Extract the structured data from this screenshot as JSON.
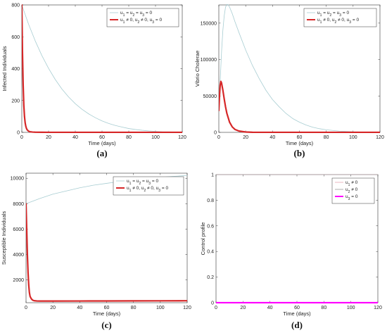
{
  "colors": {
    "no_control": "#a8cdd2",
    "with_control": "#d62728",
    "control_u1": "#e6a5b0",
    "control_u2": "#9a9a9a",
    "control_u3": "#ff00ff"
  },
  "chart_data": [
    {
      "id": "a",
      "panel_label": "(a)",
      "type": "line",
      "xlabel": "Time (days)",
      "ylabel": "Infected Individuals",
      "xlim": [
        0,
        120
      ],
      "ylim": [
        0,
        800
      ],
      "xticks": [
        "0",
        "20",
        "40",
        "60",
        "80",
        "100",
        "120"
      ],
      "yticks": [
        "0",
        "200",
        "400",
        "600",
        "800"
      ],
      "xtick_values": [
        0,
        20,
        40,
        60,
        80,
        100,
        120
      ],
      "ytick_values": [
        0,
        200,
        400,
        600,
        800
      ],
      "legend_position": "top-right",
      "series": [
        {
          "name": "u1 = u2 = u3 = 0",
          "color_key": "no_control",
          "stroke": "thin",
          "x": [
            0,
            5,
            10,
            15,
            20,
            25,
            30,
            35,
            40,
            45,
            50,
            55,
            60,
            65,
            70,
            75,
            80,
            85,
            90,
            95,
            100,
            105,
            110,
            115,
            120
          ],
          "y": [
            800,
            680,
            575,
            482,
            402,
            332,
            272,
            222,
            180,
            145,
            116,
            92,
            72,
            56,
            43,
            33,
            24,
            18,
            13,
            9,
            6,
            4,
            3,
            2,
            1
          ]
        },
        {
          "name": "u1 ≠ 0, u2 ≠ 0, u3 = 0",
          "color_key": "with_control",
          "stroke": "thick",
          "x": [
            0,
            0.5,
            1,
            1.5,
            2,
            2.5,
            3,
            3.5,
            4,
            5,
            6,
            8,
            10,
            15,
            20,
            40,
            60,
            80,
            100,
            120
          ],
          "y": [
            800,
            500,
            300,
            170,
            100,
            60,
            38,
            24,
            16,
            8,
            4,
            2,
            1,
            0.5,
            0,
            0,
            0,
            0,
            0,
            0
          ]
        }
      ]
    },
    {
      "id": "b",
      "panel_label": "(b)",
      "type": "line",
      "xlabel": "Time (days)",
      "ylabel": "Vibrio Cholerae",
      "xlim": [
        0,
        120
      ],
      "ylim": [
        0,
        175000
      ],
      "xticks": [
        "0",
        "20",
        "40",
        "60",
        "80",
        "100",
        "120"
      ],
      "yticks": [
        "0",
        "50000",
        "100000",
        "150000"
      ],
      "xtick_values": [
        0,
        20,
        40,
        60,
        80,
        100,
        120
      ],
      "ytick_values": [
        0,
        50000,
        100000,
        150000
      ],
      "legend_position": "top-right",
      "series": [
        {
          "name": "u1 = u2 = u3 = 0",
          "color_key": "no_control",
          "stroke": "thin",
          "x": [
            0,
            1,
            2,
            3,
            4,
            5,
            6,
            7,
            8,
            10,
            12,
            15,
            20,
            25,
            30,
            35,
            40,
            45,
            50,
            55,
            60,
            65,
            70,
            75,
            80,
            90,
            100,
            110,
            120
          ],
          "y": [
            30000,
            70000,
            110000,
            140000,
            160000,
            172000,
            176000,
            175000,
            172000,
            163000,
            152000,
            137000,
            113000,
            92000,
            74000,
            58000,
            45000,
            35000,
            26000,
            19000,
            14000,
            10000,
            7000,
            5000,
            3500,
            1700,
            800,
            400,
            200
          ]
        },
        {
          "name": "u1 ≠ 0, u2 ≠ 0, u3 = 0",
          "color_key": "with_control",
          "stroke": "thick",
          "x": [
            0,
            0.5,
            1,
            1.5,
            2,
            3,
            4,
            5,
            6,
            8,
            10,
            12,
            15,
            20,
            25,
            30,
            40,
            60,
            80,
            100,
            120
          ],
          "y": [
            30000,
            50000,
            65000,
            70000,
            68000,
            58000,
            46000,
            35000,
            26000,
            14000,
            7500,
            4000,
            1800,
            500,
            150,
            50,
            0,
            0,
            0,
            0,
            0
          ]
        }
      ]
    },
    {
      "id": "c",
      "panel_label": "(c)",
      "type": "line",
      "xlabel": "Time (days)",
      "ylabel": "Susceptible Individuals",
      "xlim": [
        0,
        120
      ],
      "ylim": [
        200,
        10400
      ],
      "xticks": [
        "0",
        "20",
        "40",
        "60",
        "80",
        "100",
        "120"
      ],
      "yticks": [
        "2000",
        "4000",
        "6000",
        "8000",
        "10000"
      ],
      "xtick_values": [
        0,
        20,
        40,
        60,
        80,
        100,
        120
      ],
      "ytick_values": [
        2000,
        4000,
        6000,
        8000,
        10000
      ],
      "legend_position": "top-right",
      "series": [
        {
          "name": "u1 = u2 = u3 = 0",
          "color_key": "no_control",
          "stroke": "thin",
          "x": [
            0,
            5,
            10,
            20,
            30,
            40,
            50,
            60,
            70,
            80,
            90,
            100,
            110,
            120
          ],
          "y": [
            8000,
            8200,
            8400,
            8750,
            9000,
            9250,
            9450,
            9600,
            9750,
            9880,
            9980,
            10070,
            10150,
            10220
          ]
        },
        {
          "name": "u1 ≠ 0, u2 ≠ 0, u3 = 0",
          "color_key": "with_control",
          "stroke": "thick",
          "x": [
            0,
            0.5,
            1,
            1.5,
            2,
            2.5,
            3,
            4,
            5,
            6,
            8,
            10,
            20,
            40,
            60,
            80,
            100,
            120
          ],
          "y": [
            8000,
            6000,
            4000,
            2600,
            1600,
            1000,
            700,
            500,
            400,
            360,
            340,
            330,
            330,
            335,
            340,
            345,
            350,
            355
          ]
        }
      ]
    },
    {
      "id": "d",
      "panel_label": "(d)",
      "type": "line",
      "xlabel": "Time (days)",
      "ylabel": "Control profile",
      "xlim": [
        0,
        120
      ],
      "ylim": [
        0,
        1
      ],
      "xticks": [
        "0",
        "20",
        "40",
        "60",
        "80",
        "100",
        "120"
      ],
      "yticks": [
        "0",
        "0.2",
        "0.4",
        "0.6",
        "0.8",
        "1"
      ],
      "xtick_values": [
        0,
        20,
        40,
        60,
        80,
        100,
        120
      ],
      "ytick_values": [
        0,
        0.2,
        0.4,
        0.6,
        0.8,
        1
      ],
      "legend_position": "top-right",
      "series": [
        {
          "name": "u1 ≠ 0",
          "color_key": "control_u1",
          "stroke": "thin",
          "x": [
            0,
            120
          ],
          "y": [
            1,
            1
          ]
        },
        {
          "name": "u2 ≠ 0",
          "color_key": "control_u2",
          "stroke": "thin",
          "x": [
            0,
            120
          ],
          "y": [
            1,
            1
          ]
        },
        {
          "name": "u3 = 0",
          "color_key": "control_u3",
          "stroke": "thick",
          "x": [
            0,
            120
          ],
          "y": [
            0,
            0
          ]
        }
      ]
    }
  ]
}
